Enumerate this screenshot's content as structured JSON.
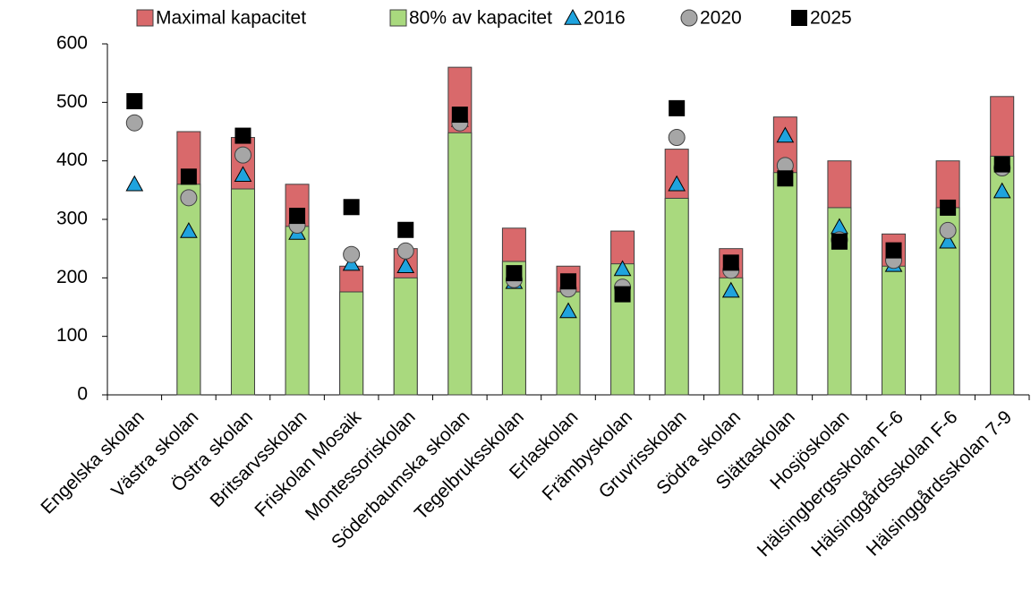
{
  "chart_data": {
    "type": "bar",
    "categories": [
      "Engelska skolan",
      "Västra skolan",
      "Östra skolan",
      "Britsarvsskolan",
      "Friskolan Mosaik",
      "Montessoriskolan",
      "Söderbaumska skolan",
      "Tegelbruksskolan",
      "Erlaskolan",
      "Främbyskolan",
      "Gruvrisskolan",
      "Södra skolan",
      "Slättaskolan",
      "Hosjöskolan",
      "Hälsingbergsskolan F-6",
      "Hälsinggårdsskolan F-6",
      "Hälsinggårdsskolan 7-9"
    ],
    "series": [
      {
        "name": "Maximal kapacitet",
        "color": "#d9696b",
        "marker": "bar",
        "values": [
          null,
          450,
          440,
          360,
          220,
          250,
          560,
          285,
          220,
          280,
          420,
          250,
          475,
          400,
          275,
          400,
          510
        ]
      },
      {
        "name": "80% av kapacitet",
        "color": "#a9d97e",
        "marker": "bar",
        "values": [
          null,
          360,
          352,
          288,
          176,
          200,
          448,
          228,
          176,
          224,
          336,
          200,
          380,
          320,
          220,
          320,
          408
        ]
      },
      {
        "name": "2016",
        "color": "#1fa3de",
        "marker": "triangle",
        "values": [
          360,
          280,
          376,
          277,
          224,
          220,
          470,
          193,
          143,
          215,
          360,
          178,
          443,
          287,
          222,
          262,
          348
        ]
      },
      {
        "name": "2020",
        "color": "#a6a6a6",
        "marker": "circle",
        "values": [
          465,
          337,
          410,
          290,
          240,
          246,
          465,
          197,
          181,
          184,
          440,
          213,
          392,
          265,
          230,
          281,
          388
        ]
      },
      {
        "name": "2025",
        "color": "#000000",
        "marker": "square",
        "values": [
          502,
          373,
          443,
          306,
          321,
          282,
          479,
          208,
          194,
          172,
          490,
          226,
          370,
          262,
          247,
          320,
          394
        ]
      }
    ],
    "ylim": [
      0,
      600
    ],
    "yticks": [
      0,
      100,
      200,
      300,
      400,
      500,
      600
    ],
    "grid": false,
    "legend": "top"
  }
}
